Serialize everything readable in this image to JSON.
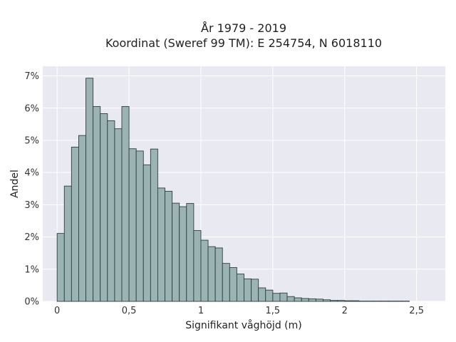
{
  "chart_data": {
    "type": "bar",
    "title_line1": "År 1979 - 2019",
    "title_line2": "Koordinat (Sweref 99 TM): E 254754, N 6018110",
    "xlabel": "Signifikant våghöjd (m)",
    "ylabel": "Andel",
    "xlim": [
      -0.1,
      2.7
    ],
    "ylim": [
      0,
      0.073
    ],
    "bin_start": 0,
    "bin_width": 0.05,
    "x_ticks": [
      {
        "value": 0,
        "label": "0"
      },
      {
        "value": 0.5,
        "label": "0,5"
      },
      {
        "value": 1,
        "label": "1"
      },
      {
        "value": 1.5,
        "label": "1,5"
      },
      {
        "value": 2,
        "label": "2"
      },
      {
        "value": 2.5,
        "label": "2,5"
      }
    ],
    "y_ticks": [
      {
        "value": 0,
        "label": "0%"
      },
      {
        "value": 0.01,
        "label": "1%"
      },
      {
        "value": 0.02,
        "label": "2%"
      },
      {
        "value": 0.03,
        "label": "3%"
      },
      {
        "value": 0.04,
        "label": "4%"
      },
      {
        "value": 0.05,
        "label": "5%"
      },
      {
        "value": 0.06,
        "label": "6%"
      },
      {
        "value": 0.07,
        "label": "7%"
      }
    ],
    "values": [
      0.0211,
      0.0358,
      0.0479,
      0.0515,
      0.0693,
      0.0605,
      0.0583,
      0.0561,
      0.0536,
      0.0605,
      0.0474,
      0.0467,
      0.0424,
      0.0473,
      0.0352,
      0.0342,
      0.0305,
      0.0294,
      0.0304,
      0.022,
      0.019,
      0.017,
      0.0166,
      0.0118,
      0.0105,
      0.0085,
      0.007,
      0.0069,
      0.0042,
      0.0035,
      0.0025,
      0.0026,
      0.0015,
      0.0011,
      0.0009,
      0.0008,
      0.0007,
      0.0005,
      0.0003,
      0.0003,
      0.0002,
      0.0002,
      0.0001,
      0.0001,
      0.0001,
      0.0001,
      0.0001,
      0.0001,
      0.0001
    ],
    "grid": true,
    "colors": {
      "bar_fill": "#9bb4b3",
      "bar_edge": "#2f3f3f",
      "plot_bg": "#e9e9f1",
      "grid": "#ffffff"
    }
  }
}
